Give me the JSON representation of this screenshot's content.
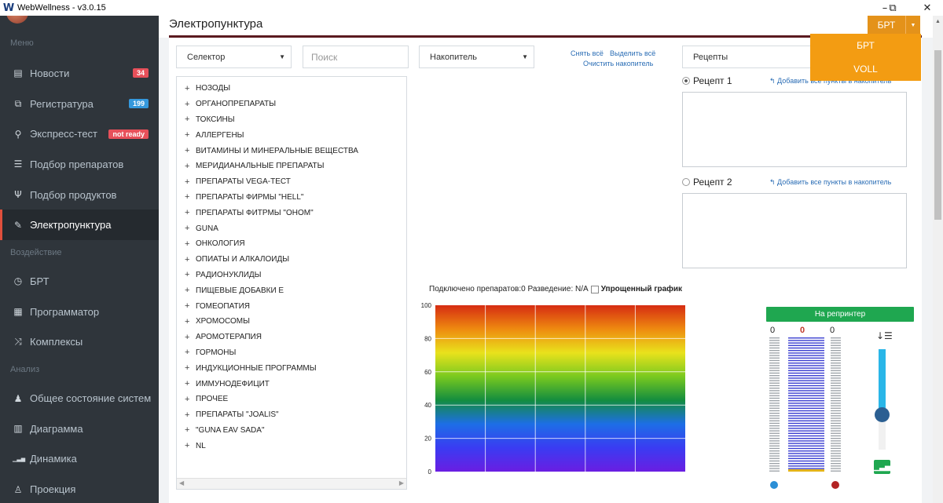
{
  "window": {
    "title": "WebWellness - v3.0.15",
    "logo": "W",
    "minimize": "–",
    "restore": "⧉",
    "close": "✕"
  },
  "sidebar": {
    "sections": [
      {
        "label": "Меню"
      },
      {
        "label": "Воздействие"
      },
      {
        "label": "Анализ"
      }
    ],
    "items": [
      {
        "label": "Новости",
        "icon": "newspaper-icon",
        "glyph": "▤",
        "badge": "34"
      },
      {
        "label": "Регистратура",
        "icon": "copy-icon",
        "glyph": "⧉",
        "badge": "199"
      },
      {
        "label": "Экспресс-тест",
        "icon": "vial-icon",
        "glyph": "⚲",
        "badge": "not ready"
      },
      {
        "label": "Подбор препаратов",
        "icon": "sliders-icon",
        "glyph": "☰"
      },
      {
        "label": "Подбор продуктов",
        "icon": "cutlery-icon",
        "glyph": "Ψ"
      },
      {
        "label": "Электропунктура",
        "icon": "pencil-icon",
        "glyph": "✎",
        "active": true
      },
      {
        "label": "БРТ",
        "icon": "clock-icon",
        "glyph": "◷"
      },
      {
        "label": "Программатор",
        "icon": "calculator-icon",
        "glyph": "▦"
      },
      {
        "label": "Комплексы",
        "icon": "shuffle-icon",
        "glyph": "⤨"
      },
      {
        "label": "Общее состояние систем",
        "icon": "person-icon",
        "glyph": "♟"
      },
      {
        "label": "Диаграмма",
        "icon": "bar-chart-icon",
        "glyph": "▥"
      },
      {
        "label": "Динамика",
        "icon": "signal-icon",
        "glyph": "▁▃▅"
      },
      {
        "label": "Проекция",
        "icon": "figure-icon",
        "glyph": "♙"
      }
    ]
  },
  "page": {
    "title": "Электропунктура",
    "mode_button": "БРТ",
    "mode_options": [
      "БРТ",
      "VOLL"
    ]
  },
  "controls": {
    "selector": "Селектор",
    "search_placeholder": "Поиск",
    "accumulator": "Накопитель",
    "deselect_all": "Снять всё",
    "select_all": "Выделить всё",
    "clear_accumulator": "Очистить накопитель",
    "recipes": "Рецепты"
  },
  "tree": [
    "НОЗОДЫ",
    "ОРГАНОПРЕПАРАТЫ",
    "ТОКСИНЫ",
    "АЛЛЕРГЕНЫ",
    "ВИТАМИНЫ И МИНЕРАЛЬНЫЕ ВЕЩЕСТВА",
    "МЕРИДИАНАЛЬНЫЕ ПРЕПАРАТЫ",
    "ПРЕПАРАТЫ VEGA-ТЕСТ",
    "ПРЕПАРАТЫ ФИРМЫ \"HELL\"",
    "ПРЕПАРАТЫ ФИТРМЫ \"ОНОМ\"",
    "GUNA",
    "ОНКОЛОГИЯ",
    "ОПИАТЫ И АЛКАЛОИДЫ",
    "РАДИОНУКЛИДЫ",
    "ПИЩЕВЫЕ ДОБАВКИ Е",
    "ГОМЕОПАТИЯ",
    "ХРОМОСОМЫ",
    "АРОМОТЕРАПИЯ",
    "ГОРМОНЫ",
    "ИНДУКЦИОННЫЕ ПРОГРАММЫ",
    "ИММУНОДЕФИЦИТ",
    "ПРОЧЕЕ",
    "ПРЕПАРАТЫ \"JOALIS\"",
    "\"GUNA EAV SADA\"",
    "NL"
  ],
  "recipes": [
    {
      "label": "Рецепт 1",
      "selected": true,
      "add_link": "Добавить все пункты в накопитель"
    },
    {
      "label": "Рецепт 2",
      "selected": false,
      "add_link": "Добавить все пункты в накопитель"
    }
  ],
  "status": {
    "connected": "Подключено препаратов:0 Разведение: N/A",
    "simplified_chart": "Упрощенный график"
  },
  "chart_data": {
    "type": "heatmap",
    "yticks": [
      "100",
      "80",
      "60",
      "40",
      "20",
      "0"
    ],
    "ylim": [
      0,
      100
    ],
    "vertical_gridlines": 4,
    "gradient_colors": [
      "#d62c12",
      "#ee8a10",
      "#e9e21c",
      "#79c91f",
      "#138d3f",
      "#1d6ee6",
      "#3a3cf2",
      "#6a1ee2"
    ]
  },
  "meter": {
    "reprinter_button": "На репринтер",
    "left_value": "0",
    "center_value": "0",
    "right_value": "0",
    "slider_level": 0.65,
    "sort_icon": "sort-descending-icon",
    "signal_icon": "signal-icon"
  }
}
